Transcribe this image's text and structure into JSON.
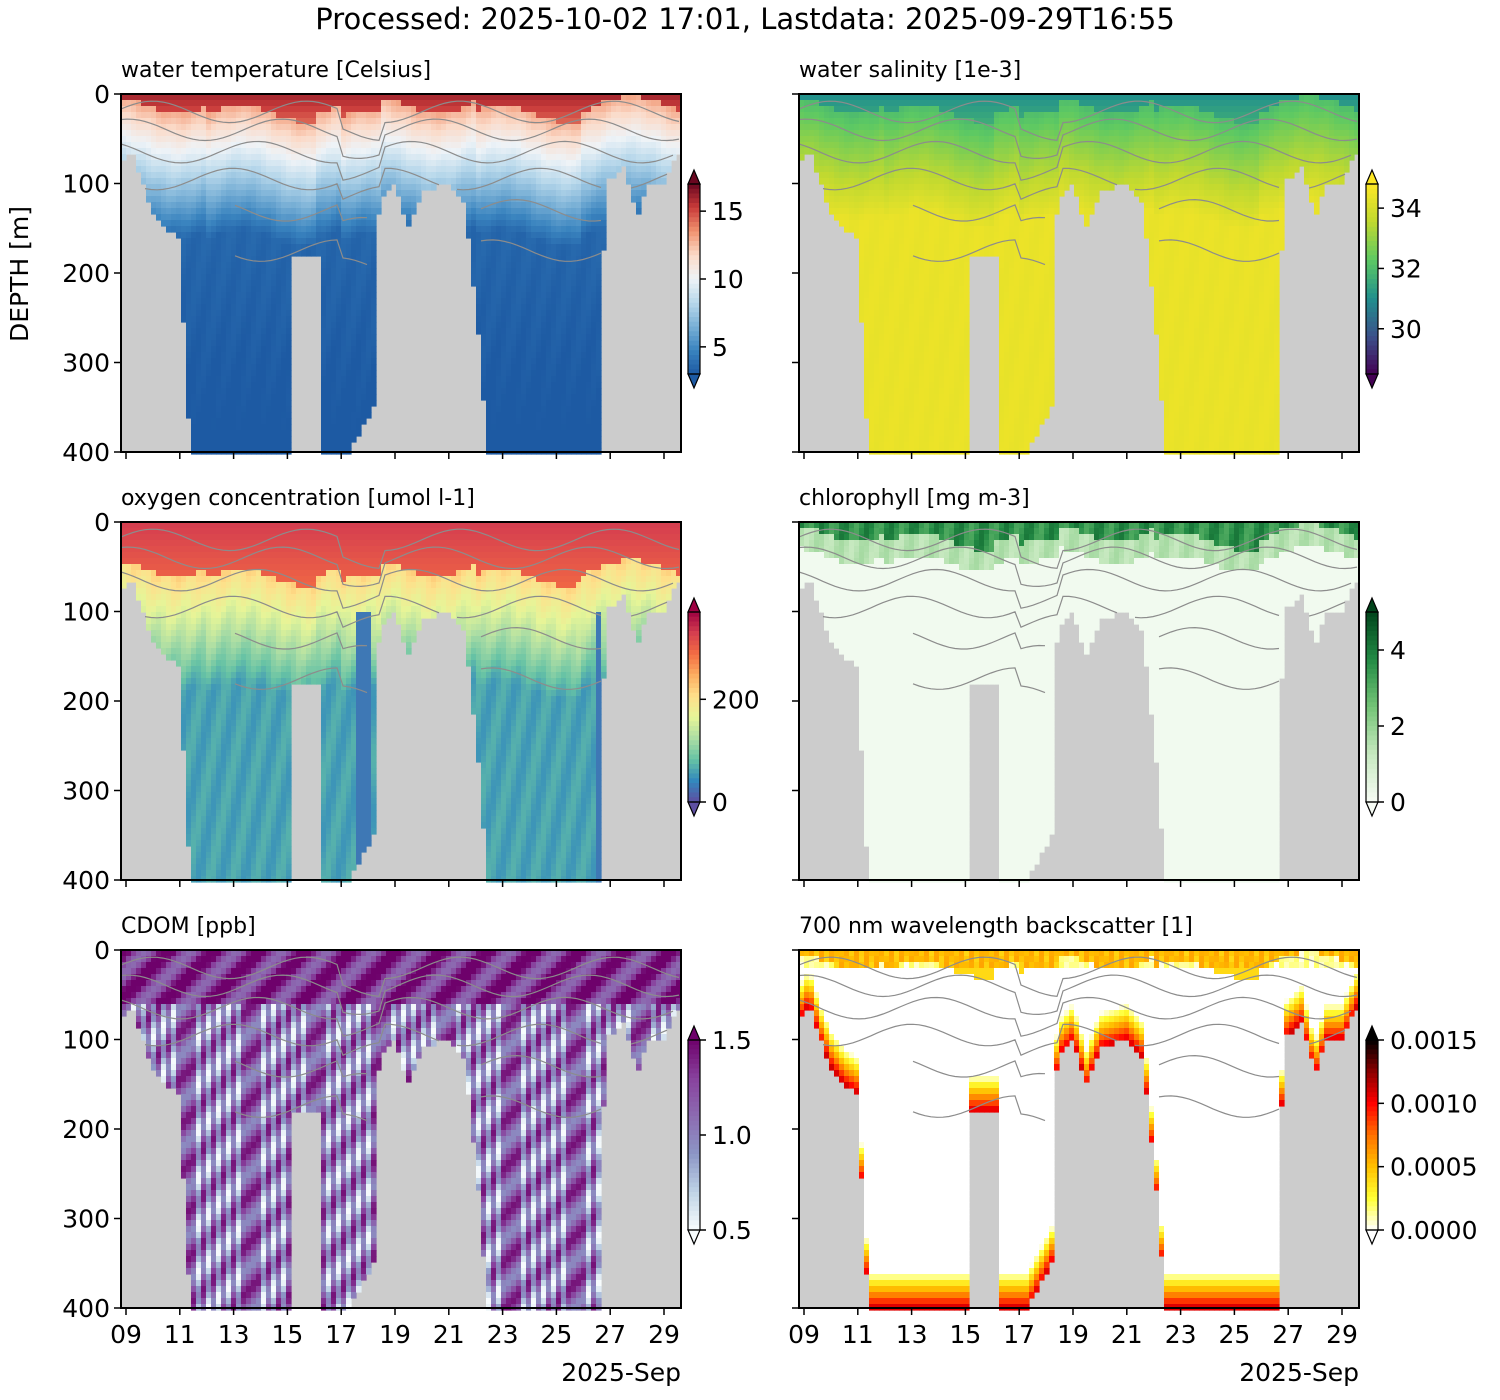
{
  "figure_title": "Processed: 2025-10-02 17:01, Lastdata: 2025-09-29T16:55",
  "ylabel": "DEPTH [m]",
  "xlabel": "2025-Sep",
  "x_tick_labels": [
    "09",
    "11",
    "13",
    "15",
    "17",
    "19",
    "21",
    "23",
    "25",
    "27",
    "29"
  ],
  "y_tick_labels": [
    "0",
    "100",
    "200",
    "300",
    "400"
  ],
  "colors": {
    "gap": "#cccccc",
    "contour": "#8c8c8c"
  },
  "chart_data": [
    {
      "type": "heatmap",
      "title": "water temperature [Celsius]",
      "xlim": [
        "2025-09-08T20:00",
        "2025-09-29T17:00"
      ],
      "ylim": [
        400,
        0
      ],
      "colormap": "RdBu_r",
      "colorbar": {
        "range": [
          3,
          17
        ],
        "ticks": [
          "5",
          "10",
          "15"
        ],
        "extend": "both"
      }
    },
    {
      "type": "heatmap",
      "title": "water salinity [1e-3]",
      "xlim": [
        "2025-09-08T20:00",
        "2025-09-29T17:00"
      ],
      "ylim": [
        400,
        0
      ],
      "colormap": "viridis",
      "colorbar": {
        "range": [
          28.5,
          34.8
        ],
        "ticks": [
          "30",
          "32",
          "34"
        ],
        "extend": "both"
      }
    },
    {
      "type": "heatmap",
      "title": "oxygen concentration [umol l-1]",
      "xlim": [
        "2025-09-08T20:00",
        "2025-09-29T17:00"
      ],
      "ylim": [
        400,
        0
      ],
      "colormap": "Spectral_r",
      "colorbar": {
        "range": [
          0,
          370
        ],
        "ticks": [
          "0",
          "200"
        ],
        "extend": "both"
      }
    },
    {
      "type": "heatmap",
      "title": "chlorophyll [mg m-3]",
      "xlim": [
        "2025-09-08T20:00",
        "2025-09-29T17:00"
      ],
      "ylim": [
        400,
        0
      ],
      "colormap": "Greens",
      "colorbar": {
        "range": [
          0,
          5
        ],
        "ticks": [
          "0",
          "2",
          "4"
        ],
        "extend": "both"
      }
    },
    {
      "type": "heatmap",
      "title": "CDOM [ppb]",
      "xlim": [
        "2025-09-08T20:00",
        "2025-09-29T17:00"
      ],
      "ylim": [
        400,
        0
      ],
      "colormap": "BuPu",
      "colorbar": {
        "range": [
          0.5,
          1.5
        ],
        "ticks": [
          "0.5",
          "1.0",
          "1.5"
        ],
        "extend": "both"
      }
    },
    {
      "type": "heatmap",
      "title": "700 nm wavelength backscatter [1]",
      "xlim": [
        "2025-09-08T20:00",
        "2025-09-29T17:00"
      ],
      "ylim": [
        400,
        0
      ],
      "colormap": "hot_r",
      "colorbar": {
        "range": [
          0,
          0.0015
        ],
        "ticks": [
          "0.0000",
          "0.0005",
          "0.0010",
          "0.0015"
        ],
        "extend": "both"
      }
    }
  ]
}
